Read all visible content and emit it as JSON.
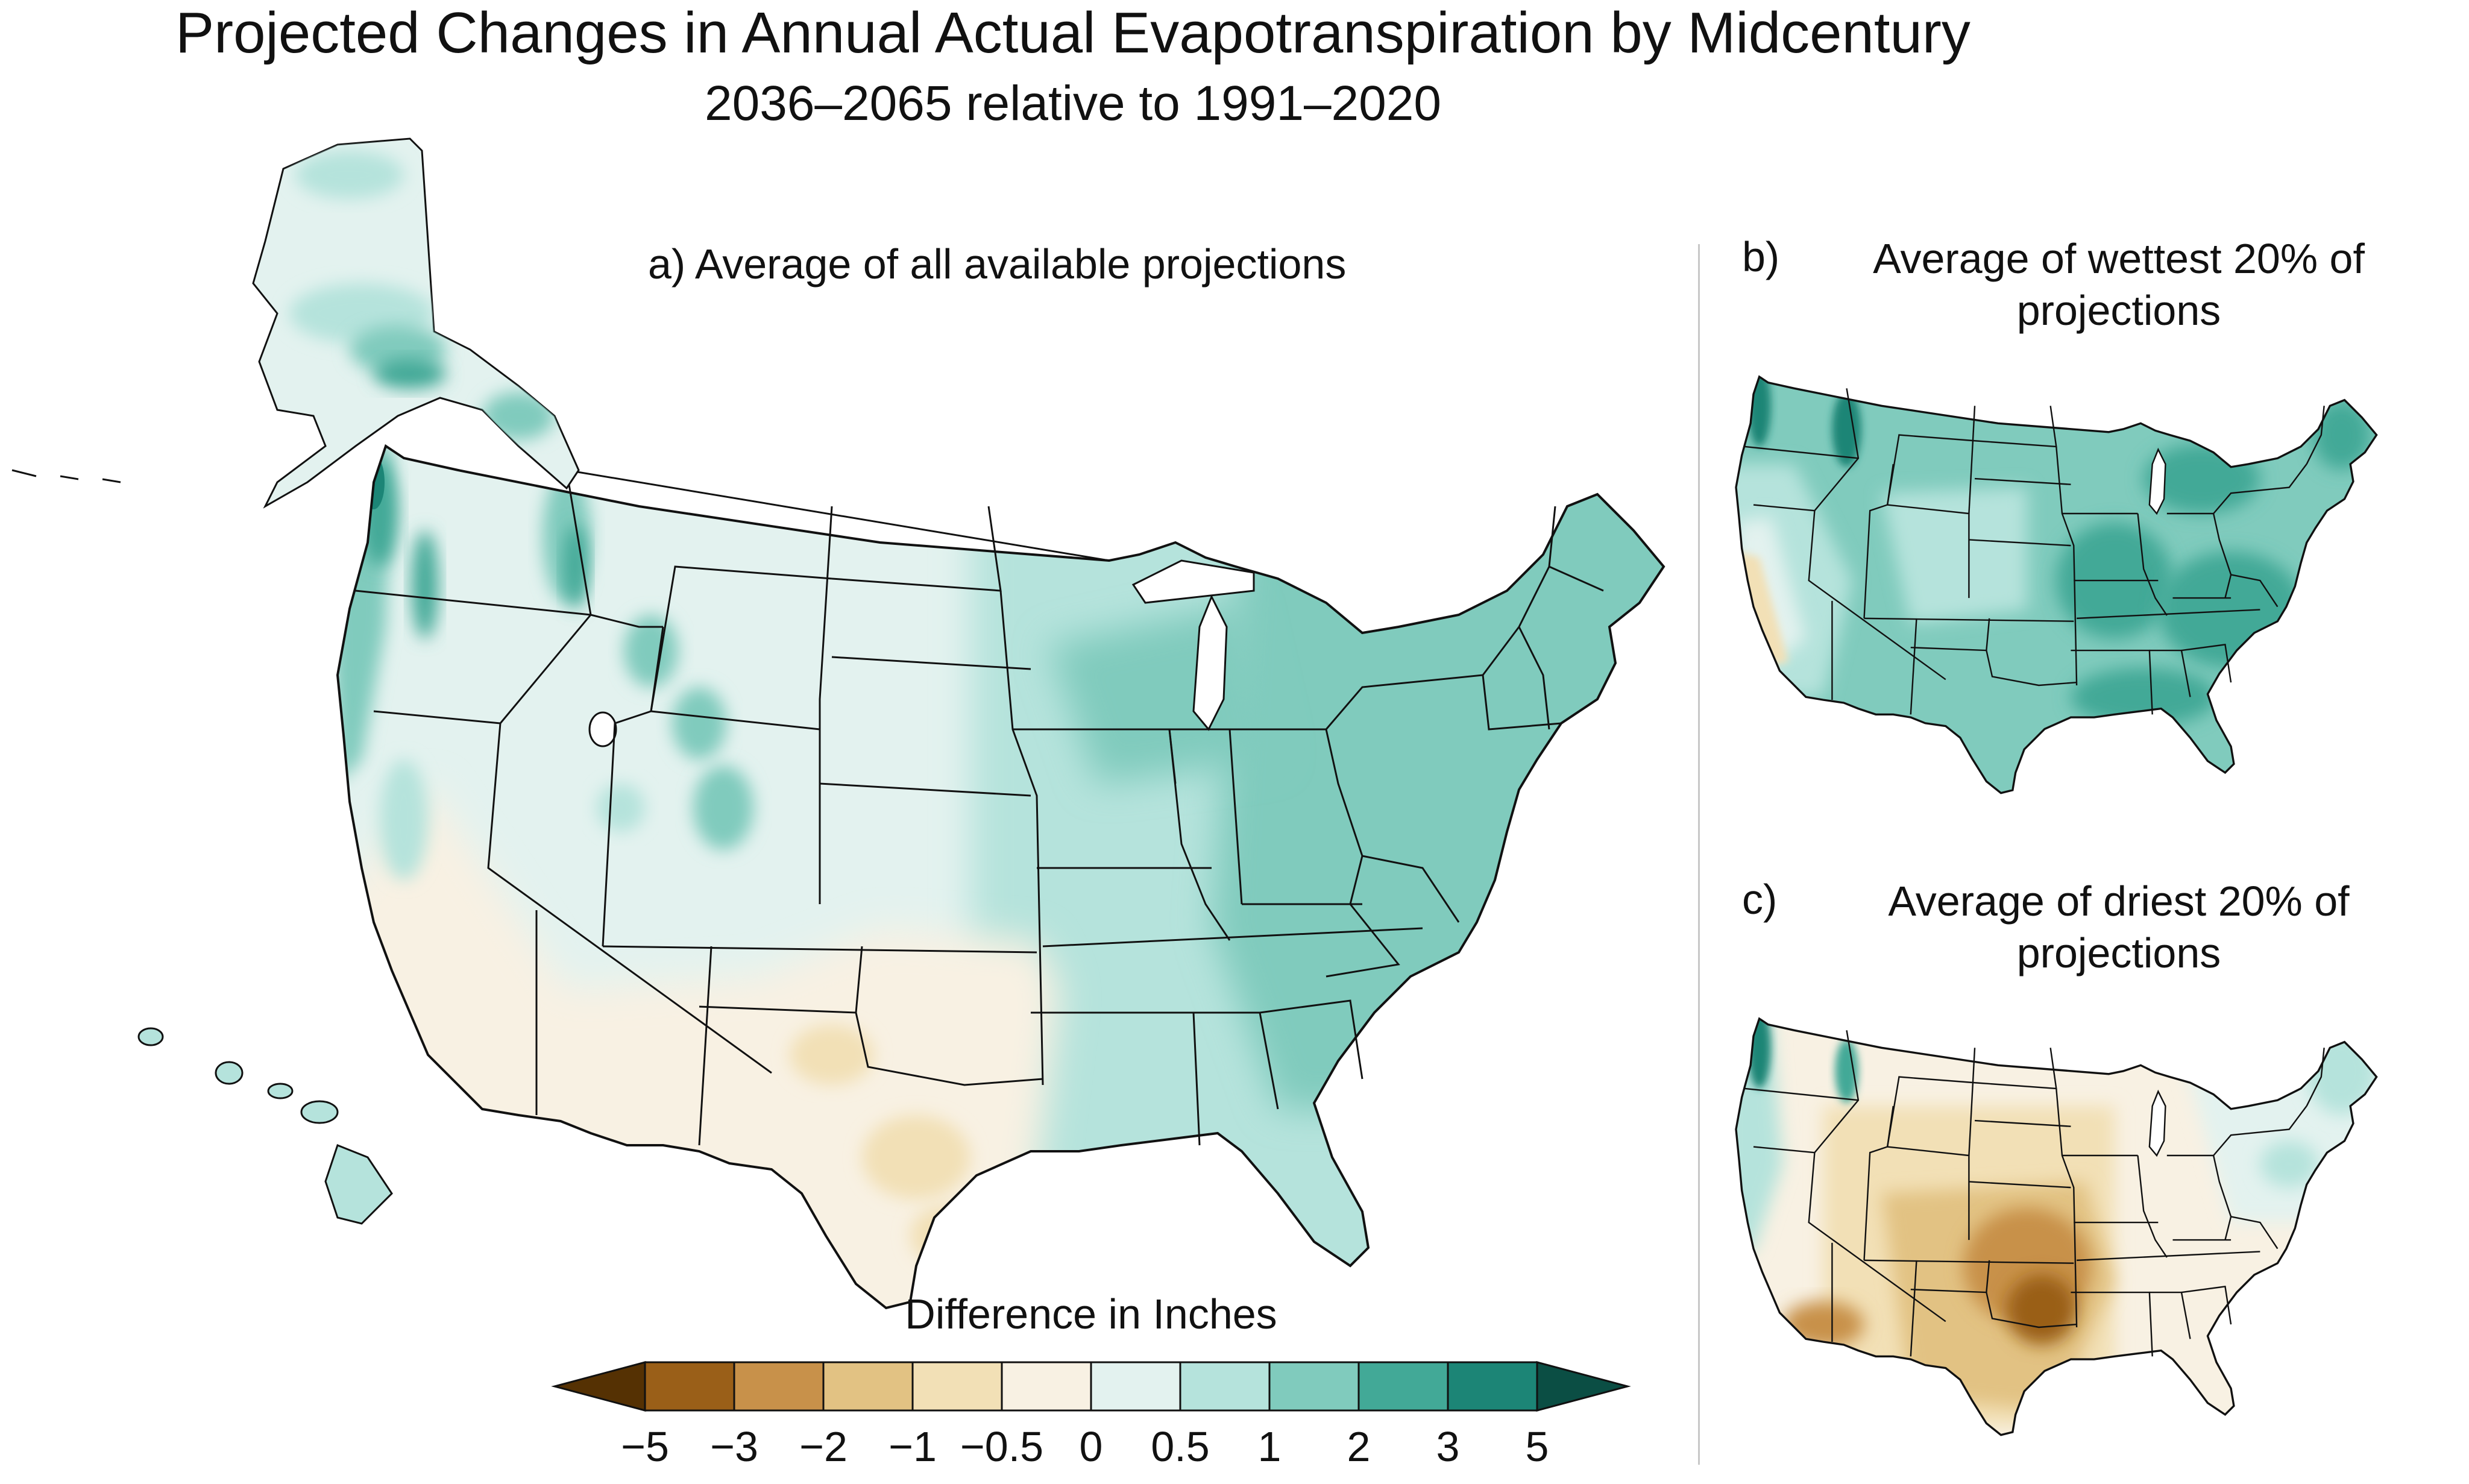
{
  "title": "Projected Changes in Annual Actual Evapotranspiration by Midcentury",
  "subtitle": "2036–2065 relative to 1991–2020",
  "panels": {
    "a": {
      "title": "a) Average of all available projections"
    },
    "b": {
      "letter": "b)",
      "title": "Average of wettest 20% of projections"
    },
    "c": {
      "letter": "c)",
      "title": "Average of driest 20% of projections"
    }
  },
  "legend": {
    "title": "Difference in Inches",
    "ticks": [
      "−5",
      "−3",
      "−2",
      "−1",
      "−0.5",
      "0",
      "0.5",
      "1",
      "2",
      "3",
      "5"
    ],
    "colors": [
      "#553103",
      "#9a5f18",
      "#c8914a",
      "#e2c283",
      "#f2e0b6",
      "#f8f1e3",
      "#e3f2ef",
      "#b5e3dc",
      "#80cbbd",
      "#42a997",
      "#1c8576",
      "#0b4e44"
    ]
  },
  "colors": {
    "border": "#111111",
    "divider": "#c8c8c8",
    "water": "#ffffff"
  }
}
